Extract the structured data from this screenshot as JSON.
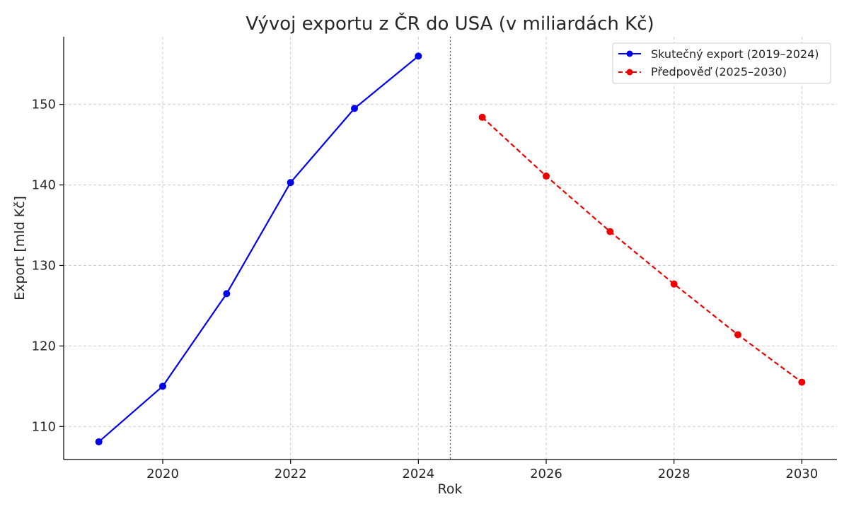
{
  "chart_data": {
    "type": "line",
    "title": "Vývoj exportu z ČR do USA (v miliardách Kč)",
    "xlabel": "Rok",
    "ylabel": "Export [mld Kč]",
    "xlim": [
      2018.45,
      2030.55
    ],
    "ylim": [
      105.9,
      158.4
    ],
    "x_ticks": [
      2020,
      2022,
      2024,
      2026,
      2028,
      2030
    ],
    "y_ticks": [
      110,
      120,
      130,
      140,
      150
    ],
    "grid": true,
    "legend_position": "top-right",
    "divider_x": 2024.5,
    "series": [
      {
        "name": "Skutečný export (2019–2024)",
        "color": "#0000ee",
        "line_style": "solid",
        "marker": "circle",
        "x": [
          2019,
          2020,
          2021,
          2022,
          2023,
          2024
        ],
        "y": [
          108.1,
          115.0,
          126.5,
          140.3,
          149.5,
          156.0
        ]
      },
      {
        "name": "Předpověď (2025–2030)",
        "color": "#ee0000",
        "line_style": "dashed",
        "marker": "circle",
        "x": [
          2025,
          2026,
          2027,
          2028,
          2029,
          2030
        ],
        "y": [
          148.4,
          141.1,
          134.2,
          127.7,
          121.4,
          115.5
        ]
      }
    ]
  }
}
